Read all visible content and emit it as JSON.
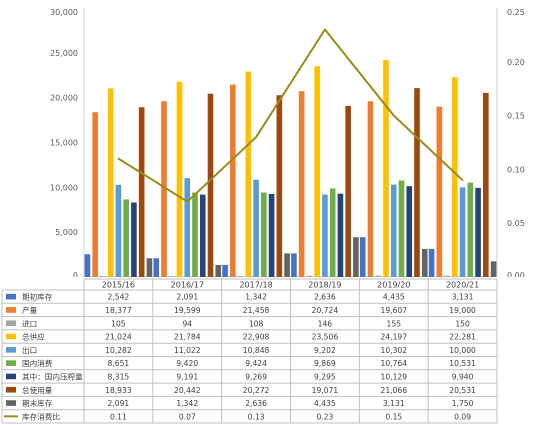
{
  "chart_data": {
    "type": "bar",
    "categories": [
      "2015/16",
      "2016/17",
      "2017/18",
      "2018/19",
      "2019/20",
      "2020/21"
    ],
    "y_left": {
      "lim": [
        0,
        30000
      ],
      "ticks": [
        "0",
        "5,000",
        "10,000",
        "15,000",
        "20,000",
        "25,000",
        "30,000"
      ]
    },
    "y_right": {
      "lim": [
        0,
        0.25
      ],
      "ticks": [
        "0.00",
        "0.05",
        "0.10",
        "0.15",
        "0.20",
        "0.25"
      ]
    },
    "grid": false,
    "series": [
      {
        "name": "期初库存",
        "color": "#4472C4",
        "values": [
          2542,
          2091,
          1342,
          2636,
          4435,
          3131
        ],
        "labels": [
          "2,542",
          "2,091",
          "1,342",
          "2,636",
          "4,435",
          "3,131"
        ]
      },
      {
        "name": "产量",
        "color": "#ED7D31",
        "values": [
          18377,
          19599,
          21458,
          20724,
          19607,
          19000
        ],
        "labels": [
          "18,377",
          "19,599",
          "21,458",
          "20,724",
          "19,607",
          "19,000"
        ]
      },
      {
        "name": "进口",
        "color": "#A5A5A5",
        "values": [
          105,
          94,
          108,
          146,
          155,
          150
        ],
        "labels": [
          "105",
          "94",
          "108",
          "146",
          "155",
          "150"
        ]
      },
      {
        "name": "总供应",
        "color": "#FFC000",
        "values": [
          21024,
          21784,
          22908,
          23506,
          24197,
          22281
        ],
        "labels": [
          "21,024",
          "21,784",
          "22,908",
          "23,506",
          "24,197",
          "22,281"
        ]
      },
      {
        "name": "出口",
        "color": "#5B9BD5",
        "values": [
          10282,
          11022,
          10848,
          9202,
          10302,
          10000
        ],
        "labels": [
          "10,282",
          "11,022",
          "10,848",
          "9,202",
          "10,302",
          "10,000"
        ]
      },
      {
        "name": "国内消费",
        "color": "#70AD47",
        "values": [
          8651,
          9420,
          9424,
          9869,
          10764,
          10531
        ],
        "labels": [
          "8,651",
          "9,420",
          "9,424",
          "9,869",
          "10,764",
          "10,531"
        ]
      },
      {
        "name": "其中：国内压榨量",
        "color": "#264478",
        "values": [
          8315,
          9191,
          9269,
          9295,
          10129,
          9940
        ],
        "labels": [
          "8,315",
          "9,191",
          "9,269",
          "9,295",
          "10,129",
          "9,940"
        ]
      },
      {
        "name": "总使用量",
        "color": "#9E480E",
        "values": [
          18933,
          20442,
          20272,
          19071,
          21066,
          20531
        ],
        "labels": [
          "18,933",
          "20,442",
          "20,272",
          "19,071",
          "21,066",
          "20,531"
        ]
      },
      {
        "name": "期末库存",
        "color": "#636363",
        "values": [
          2091,
          1342,
          2636,
          4435,
          3131,
          1750
        ],
        "labels": [
          "2,091",
          "1,342",
          "2,636",
          "4,435",
          "3,131",
          "1,750"
        ]
      }
    ],
    "line_series": {
      "name": "库存消费比",
      "color": "#9C8A16",
      "axis": "right",
      "values": [
        0.11,
        0.07,
        0.13,
        0.23,
        0.15,
        0.09
      ],
      "labels": [
        "0.11",
        "0.07",
        "0.13",
        "0.23",
        "0.15",
        "0.09"
      ]
    }
  }
}
